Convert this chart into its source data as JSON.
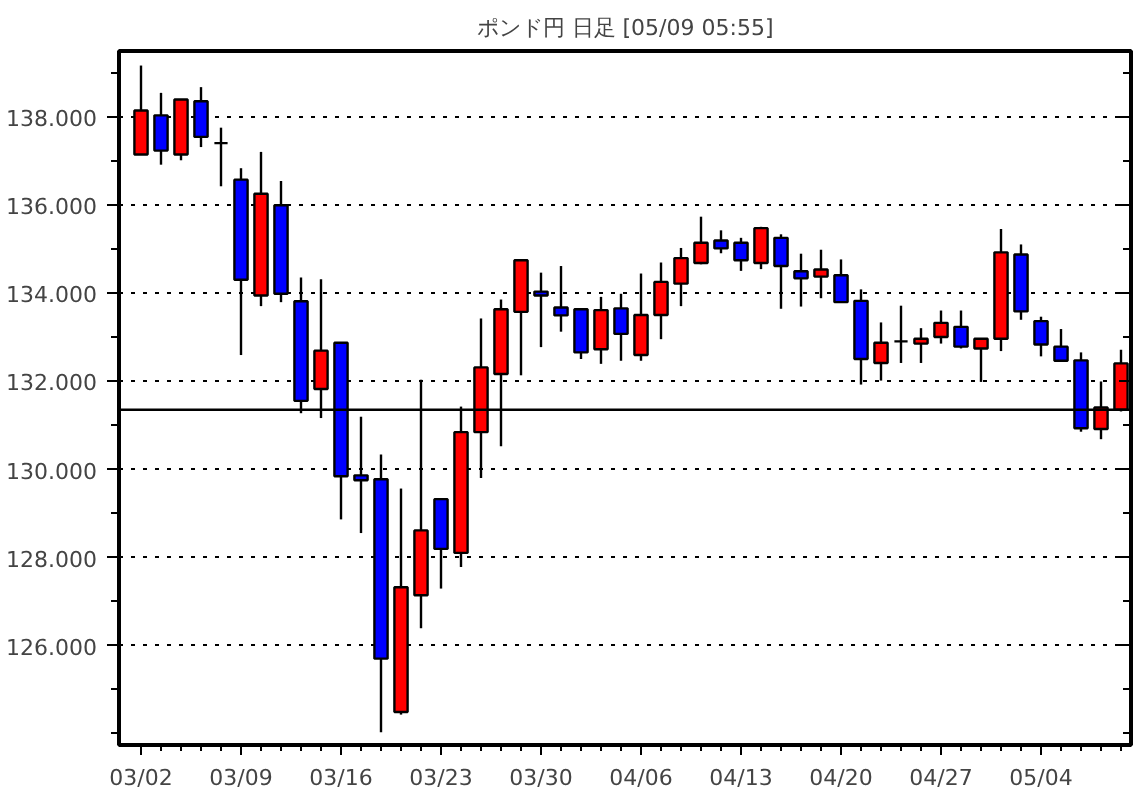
{
  "chart_data": {
    "type": "candlestick",
    "title": "ポンド円 日足 [05/09 05:55]",
    "categories": [
      "03/02",
      null,
      null,
      null,
      null,
      "03/09",
      null,
      null,
      null,
      null,
      "03/16",
      null,
      null,
      null,
      null,
      "03/23",
      null,
      null,
      null,
      null,
      "03/30",
      null,
      null,
      null,
      null,
      "04/06",
      null,
      null,
      null,
      null,
      "04/13",
      null,
      null,
      null,
      null,
      "04/20",
      null,
      null,
      null,
      null,
      "04/27",
      null,
      null,
      null,
      null,
      "05/04",
      null,
      null,
      null,
      null
    ],
    "ohlc": [
      [
        137.15,
        139.17,
        137.15,
        138.15
      ],
      [
        138.04,
        138.55,
        136.92,
        137.24
      ],
      [
        137.15,
        138.4,
        137.02,
        138.4
      ],
      [
        138.36,
        138.68,
        137.32,
        137.55
      ],
      [
        137.41,
        137.76,
        136.43,
        137.41
      ],
      [
        136.58,
        136.84,
        132.6,
        134.31
      ],
      [
        133.95,
        137.21,
        133.71,
        136.26
      ],
      [
        136.0,
        136.55,
        133.8,
        133.99
      ],
      [
        133.82,
        134.36,
        131.28,
        131.56
      ],
      [
        131.83,
        134.32,
        131.17,
        132.7
      ],
      [
        132.88,
        132.88,
        128.87,
        129.85
      ],
      [
        129.87,
        131.2,
        128.56,
        129.76
      ],
      [
        129.78,
        130.34,
        124.04,
        125.71
      ],
      [
        124.5,
        129.57,
        124.44,
        127.33
      ],
      [
        127.15,
        132.04,
        126.4,
        128.62
      ],
      [
        129.33,
        129.33,
        127.3,
        128.2
      ],
      [
        128.11,
        131.43,
        127.79,
        130.85
      ],
      [
        130.85,
        133.43,
        129.81,
        132.32
      ],
      [
        132.17,
        133.86,
        130.53,
        133.64
      ],
      [
        133.58,
        134.75,
        132.14,
        134.75
      ],
      [
        134.04,
        134.47,
        132.78,
        133.95
      ],
      [
        133.68,
        134.62,
        133.13,
        133.5
      ],
      [
        133.64,
        133.64,
        132.51,
        132.66
      ],
      [
        132.73,
        133.92,
        132.4,
        133.62
      ],
      [
        133.66,
        133.99,
        132.47,
        133.08
      ],
      [
        132.6,
        134.45,
        132.47,
        133.51
      ],
      [
        133.51,
        134.7,
        132.96,
        134.26
      ],
      [
        134.22,
        135.03,
        133.71,
        134.8
      ],
      [
        134.69,
        135.74,
        134.66,
        135.15
      ],
      [
        135.2,
        135.43,
        134.91,
        135.02
      ],
      [
        135.15,
        135.26,
        134.51,
        134.75
      ],
      [
        134.69,
        135.51,
        134.55,
        135.48
      ],
      [
        135.26,
        135.34,
        133.65,
        134.62
      ],
      [
        134.5,
        134.9,
        133.7,
        134.34
      ],
      [
        134.38,
        134.99,
        133.89,
        134.54
      ],
      [
        134.41,
        134.77,
        133.8,
        133.8
      ],
      [
        133.83,
        134.09,
        131.93,
        132.51
      ],
      [
        132.42,
        133.34,
        132.02,
        132.88
      ],
      [
        132.91,
        133.72,
        132.42,
        132.91
      ],
      [
        132.86,
        133.21,
        132.42,
        132.97
      ],
      [
        133.01,
        133.61,
        132.86,
        133.33
      ],
      [
        133.24,
        133.61,
        132.75,
        132.79
      ],
      [
        132.75,
        132.97,
        131.99,
        132.97
      ],
      [
        132.97,
        135.46,
        132.69,
        134.93
      ],
      [
        134.88,
        135.11,
        133.4,
        133.59
      ],
      [
        133.37,
        133.47,
        132.57,
        132.84
      ],
      [
        132.79,
        133.19,
        132.47,
        132.47
      ],
      [
        132.48,
        132.66,
        130.86,
        130.94
      ],
      [
        130.92,
        132.0,
        130.69,
        131.41
      ],
      [
        131.36,
        132.72,
        131.32,
        132.41
      ]
    ],
    "colors": [
      "#ff0000",
      "#0000ff",
      "#ff0000",
      "#0000ff",
      "#000000",
      "#0000ff",
      "#ff0000",
      "#0000ff",
      "#0000ff",
      "#ff0000",
      "#0000ff",
      "#0000ff",
      "#0000ff",
      "#ff0000",
      "#ff0000",
      "#0000ff",
      "#ff0000",
      "#ff0000",
      "#ff0000",
      "#ff0000",
      "#0000ff",
      "#0000ff",
      "#0000ff",
      "#ff0000",
      "#0000ff",
      "#ff0000",
      "#ff0000",
      "#ff0000",
      "#ff0000",
      "#0000ff",
      "#0000ff",
      "#ff0000",
      "#0000ff",
      "#0000ff",
      "#ff0000",
      "#0000ff",
      "#0000ff",
      "#ff0000",
      "#000000",
      "#ff0000",
      "#ff0000",
      "#0000ff",
      "#ff0000",
      "#ff0000",
      "#0000ff",
      "#0000ff",
      "#0000ff",
      "#0000ff",
      "#ff0000",
      "#ff0000"
    ],
    "ylim": [
      123.75,
      139.5
    ],
    "yticks": [
      {
        "value": 124,
        "label": null
      },
      {
        "value": 125,
        "label": null
      },
      {
        "value": 126,
        "label": "126.000"
      },
      {
        "value": 127,
        "label": null
      },
      {
        "value": 128,
        "label": "128.000"
      },
      {
        "value": 129,
        "label": null
      },
      {
        "value": 130,
        "label": "130.000"
      },
      {
        "value": 131,
        "label": null
      },
      {
        "value": 132,
        "label": "132.000"
      },
      {
        "value": 133,
        "label": null
      },
      {
        "value": 134,
        "label": "134.000"
      },
      {
        "value": 135,
        "label": null
      },
      {
        "value": 136,
        "label": "136.000"
      },
      {
        "value": 137,
        "label": null
      },
      {
        "value": 138,
        "label": "138.000"
      },
      {
        "value": 139,
        "label": null
      }
    ],
    "grid": "y",
    "ref_lines": [
      {
        "axis": "y",
        "value": 131.36,
        "color": "#000000"
      }
    ]
  }
}
